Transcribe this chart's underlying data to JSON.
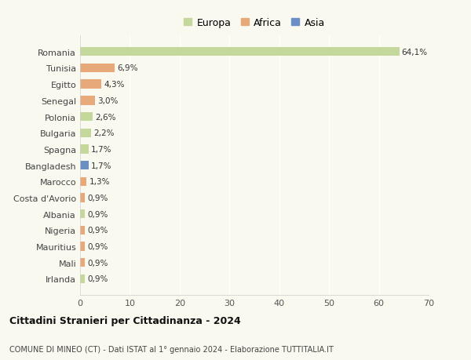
{
  "categories": [
    "Romania",
    "Tunisia",
    "Egitto",
    "Senegal",
    "Polonia",
    "Bulgaria",
    "Spagna",
    "Bangladesh",
    "Marocco",
    "Costa d'Avorio",
    "Albania",
    "Nigeria",
    "Mauritius",
    "Mali",
    "Irlanda"
  ],
  "values": [
    64.1,
    6.9,
    4.3,
    3.0,
    2.6,
    2.2,
    1.7,
    1.7,
    1.3,
    0.9,
    0.9,
    0.9,
    0.9,
    0.9,
    0.9
  ],
  "labels": [
    "64,1%",
    "6,9%",
    "4,3%",
    "3,0%",
    "2,6%",
    "2,2%",
    "1,7%",
    "1,7%",
    "1,3%",
    "0,9%",
    "0,9%",
    "0,9%",
    "0,9%",
    "0,9%",
    "0,9%"
  ],
  "continents": [
    "Europa",
    "Africa",
    "Africa",
    "Africa",
    "Europa",
    "Europa",
    "Europa",
    "Asia",
    "Africa",
    "Africa",
    "Europa",
    "Africa",
    "Africa",
    "Africa",
    "Europa"
  ],
  "colors": {
    "Europa": "#c5d89b",
    "Africa": "#e8a97a",
    "Asia": "#6b8fc4"
  },
  "xlim": [
    0,
    70
  ],
  "xticks": [
    0,
    10,
    20,
    30,
    40,
    50,
    60,
    70
  ],
  "title": "Cittadini Stranieri per Cittadinanza - 2024",
  "subtitle": "COMUNE DI MINEO (CT) - Dati ISTAT al 1° gennaio 2024 - Elaborazione TUTTITALIA.IT",
  "background_color": "#f9f9ef",
  "grid_color": "#ffffff",
  "bar_height": 0.55
}
